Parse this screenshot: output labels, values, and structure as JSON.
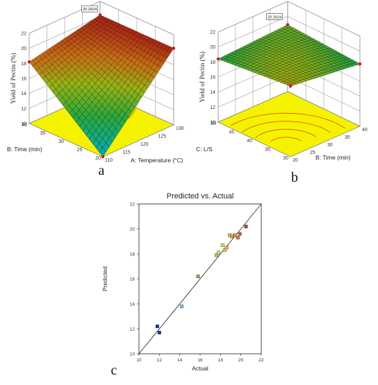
{
  "panels": {
    "a": {
      "letter": "a",
      "zlabel": "Yield of Pectin (%)",
      "xlabel": "A: Temperature (°C)",
      "ylabel": "B: Time (min)",
      "zticks": [
        "10",
        "12",
        "14",
        "16",
        "18",
        "20",
        "22"
      ],
      "xticks": [
        "110",
        "115",
        "120",
        "125",
        "130"
      ],
      "yticks": [
        "20",
        "25",
        "30",
        "35",
        "40"
      ],
      "peak_label": "20.2624"
    },
    "b": {
      "letter": "b",
      "zlabel": "Yield of Pectin (%)",
      "xlabel": "B: Time (min)",
      "ylabel": "C: L/S",
      "zticks": [
        "10",
        "12",
        "14",
        "16",
        "18",
        "20",
        "22"
      ],
      "xticks": [
        "20",
        "25",
        "30",
        "35",
        "40"
      ],
      "yticks": [
        "30",
        "35",
        "40",
        "45",
        "50"
      ],
      "peak_label": "20.2624"
    },
    "c": {
      "letter": "c"
    }
  },
  "chart_data": [
    {
      "id": "a",
      "type": "surface",
      "zlabel": "Yield of Pectin (%)",
      "xlabel": "A: Temperature (°C)",
      "ylabel": "B: Time (min)",
      "xlim": [
        110,
        130
      ],
      "ylim": [
        20,
        40
      ],
      "zlim": [
        10,
        22
      ],
      "corner_values": {
        "x110_y20": 10.0,
        "x130_y20": 20.2,
        "x110_y40": 18.2,
        "x130_y40": 20.2
      },
      "peak_value": 20.2624,
      "contour_projection": true
    },
    {
      "id": "b",
      "type": "surface",
      "zlabel": "Yield of Pectin (%)",
      "xlabel": "B: Time (min)",
      "ylabel": "C: L/S",
      "xlim": [
        20,
        40
      ],
      "ylim": [
        30,
        50
      ],
      "zlim": [
        10,
        22
      ],
      "corner_values": {
        "x20_y30": 19.4,
        "x40_y30": 18.3,
        "x20_y50": 18.4,
        "x40_y50": 18.9
      },
      "peak_value": 20.2624,
      "contour_projection": true
    },
    {
      "id": "c",
      "type": "scatter",
      "title": "Predicted vs. Actual",
      "xlabel": "Actual",
      "ylabel": "Predicted",
      "xlim": [
        10,
        22
      ],
      "ylim": [
        10,
        22
      ],
      "xticks": [
        10,
        12,
        14,
        16,
        18,
        20,
        22
      ],
      "yticks": [
        10,
        12,
        14,
        16,
        18,
        20,
        22
      ],
      "reference_line": [
        [
          10,
          10
        ],
        [
          22,
          22
        ]
      ],
      "points": [
        {
          "x": 11.8,
          "y": 12.2,
          "color": "#1f2fbf"
        },
        {
          "x": 12.0,
          "y": 11.7,
          "color": "#1f2fbf"
        },
        {
          "x": 14.2,
          "y": 13.8,
          "color": "#7fc6e8"
        },
        {
          "x": 15.8,
          "y": 16.2,
          "color": "#6dbb4a"
        },
        {
          "x": 17.6,
          "y": 17.9,
          "color": "#a9d36a"
        },
        {
          "x": 17.8,
          "y": 18.1,
          "color": "#c6e06e"
        },
        {
          "x": 18.2,
          "y": 18.7,
          "color": "#e8d960"
        },
        {
          "x": 18.4,
          "y": 18.3,
          "color": "#e8c957"
        },
        {
          "x": 18.6,
          "y": 18.5,
          "color": "#e2b24e"
        },
        {
          "x": 18.9,
          "y": 19.5,
          "color": "#e0c45a"
        },
        {
          "x": 19.1,
          "y": 19.4,
          "color": "#d9a84a"
        },
        {
          "x": 19.4,
          "y": 19.5,
          "color": "#d88f42"
        },
        {
          "x": 19.7,
          "y": 19.3,
          "color": "#cf7a3a"
        },
        {
          "x": 19.9,
          "y": 19.6,
          "color": "#c4663a"
        },
        {
          "x": 20.5,
          "y": 20.2,
          "color": "#b4443a"
        }
      ]
    }
  ]
}
